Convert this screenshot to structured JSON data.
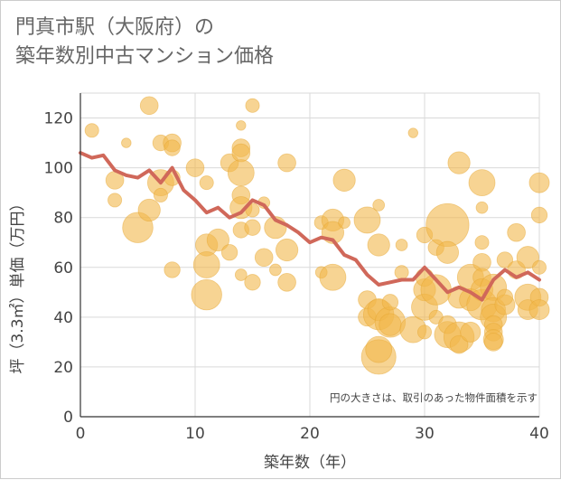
{
  "chart_data": {
    "type": "scatter",
    "title": "門真市駅（大阪府）の\n築年数別中古マンション価格",
    "xlabel": "築年数（年）",
    "ylabel": "坪（3.3㎡）単価（万円）",
    "xlim": [
      0,
      40
    ],
    "ylim": [
      0,
      130
    ],
    "x_ticks": [
      "0",
      "10",
      "20",
      "30",
      "40"
    ],
    "y_ticks": [
      "0",
      "20",
      "40",
      "60",
      "80",
      "100",
      "120"
    ],
    "grid": true,
    "note": "円の大きさは、取引のあった物件面積を示す",
    "colors": {
      "bubble": "#f2b84b",
      "bubble_stroke": "#e6a630",
      "line": "#d0685a",
      "grid": "#d9d9d9",
      "axis": "#333333"
    },
    "series": [
      {
        "type": "line",
        "x": [
          0,
          1,
          2,
          3,
          4,
          5,
          6,
          7,
          8,
          9,
          10,
          11,
          12,
          13,
          14,
          15,
          16,
          17,
          18,
          19,
          20,
          21,
          22,
          23,
          24,
          25,
          26,
          27,
          28,
          29,
          30,
          31,
          32,
          33,
          34,
          35,
          36,
          37,
          38,
          39,
          40
        ],
        "y": [
          106,
          104,
          105,
          99,
          97,
          96,
          99,
          94,
          100,
          91,
          87,
          82,
          84,
          80,
          82,
          87,
          85,
          79,
          77,
          74,
          70,
          72,
          71,
          65,
          63,
          57,
          53,
          54,
          55,
          55,
          60,
          55,
          50,
          52,
          50,
          47,
          55,
          59,
          56,
          58,
          55
        ]
      },
      {
        "type": "bubble",
        "points": [
          [
            1,
            115,
            2
          ],
          [
            4,
            110,
            1
          ],
          [
            3,
            95,
            3
          ],
          [
            3,
            87,
            2
          ],
          [
            5,
            76,
            6
          ],
          [
            6,
            125,
            3
          ],
          [
            6,
            83,
            4
          ],
          [
            7,
            94,
            5
          ],
          [
            7,
            110,
            2.5
          ],
          [
            8,
            110,
            3
          ],
          [
            8,
            108,
            2.5
          ],
          [
            8,
            96,
            2.5
          ],
          [
            7,
            89,
            2
          ],
          [
            8,
            59,
            2.5
          ],
          [
            10,
            100,
            3
          ],
          [
            11,
            94,
            2
          ],
          [
            11,
            69,
            4
          ],
          [
            11,
            61,
            5
          ],
          [
            11,
            49,
            6
          ],
          [
            12,
            71,
            4
          ],
          [
            13,
            102,
            3
          ],
          [
            13,
            66,
            2.5
          ],
          [
            14,
            117,
            1
          ],
          [
            14,
            108,
            3
          ],
          [
            14,
            106,
            3
          ],
          [
            14,
            98,
            5
          ],
          [
            14,
            89,
            3
          ],
          [
            14,
            84,
            4
          ],
          [
            14,
            75,
            2.5
          ],
          [
            14,
            57,
            1.5
          ],
          [
            15,
            125,
            2
          ],
          [
            15,
            83,
            2
          ],
          [
            15,
            76,
            2.5
          ],
          [
            15,
            54,
            2.5
          ],
          [
            16,
            86,
            1.5
          ],
          [
            16,
            64,
            3
          ],
          [
            17,
            76,
            4
          ],
          [
            17,
            59,
            1.5
          ],
          [
            18,
            102,
            3
          ],
          [
            18,
            67,
            4
          ],
          [
            18,
            54,
            3
          ],
          [
            21,
            58,
            1.5
          ],
          [
            21,
            78,
            2
          ],
          [
            22,
            79,
            4
          ],
          [
            22,
            74,
            4
          ],
          [
            22,
            56,
            5
          ],
          [
            23,
            95,
            4
          ],
          [
            23,
            78,
            1.5
          ],
          [
            25,
            79,
            5
          ],
          [
            25,
            47,
            3
          ],
          [
            25,
            40,
            3
          ],
          [
            26,
            85,
            1.5
          ],
          [
            26,
            69,
            4
          ],
          [
            26,
            41,
            6
          ],
          [
            26,
            24,
            7
          ],
          [
            26,
            27,
            5
          ],
          [
            26,
            43,
            4
          ],
          [
            27,
            38,
            6
          ],
          [
            27,
            46,
            2.5
          ],
          [
            27,
            37,
            4
          ],
          [
            28,
            58,
            2
          ],
          [
            28,
            69,
            1.5
          ],
          [
            29,
            114,
            1
          ],
          [
            29,
            35,
            5
          ],
          [
            30,
            73,
            2.5
          ],
          [
            30,
            51,
            4
          ],
          [
            30,
            44,
            5
          ],
          [
            30,
            34,
            2
          ],
          [
            30,
            56,
            3
          ],
          [
            31,
            68,
            2.5
          ],
          [
            31,
            51,
            6
          ],
          [
            31,
            40,
            2
          ],
          [
            32,
            77,
            9
          ],
          [
            32,
            66,
            4
          ],
          [
            32,
            33,
            5
          ],
          [
            32,
            37,
            3
          ],
          [
            33,
            102,
            4
          ],
          [
            33,
            48,
            4
          ],
          [
            33,
            32,
            6
          ],
          [
            33,
            29,
            3
          ],
          [
            34,
            56,
            5
          ],
          [
            34,
            47,
            4
          ],
          [
            34,
            34,
            3.5
          ],
          [
            35,
            94,
            5
          ],
          [
            35,
            84,
            1.5
          ],
          [
            35,
            70,
            2
          ],
          [
            35,
            62,
            3
          ],
          [
            35,
            56,
            3
          ],
          [
            35,
            51,
            4
          ],
          [
            35,
            45,
            6
          ],
          [
            36,
            52,
            5
          ],
          [
            36,
            43,
            4.5
          ],
          [
            36,
            40,
            5
          ],
          [
            36,
            37,
            3
          ],
          [
            36,
            34,
            3
          ],
          [
            36,
            31,
            3.5
          ],
          [
            36,
            30,
            3
          ],
          [
            37,
            63,
            2.5
          ],
          [
            37,
            45,
            3.5
          ],
          [
            37,
            48,
            2.5
          ],
          [
            38,
            74,
            3
          ],
          [
            38,
            59,
            3
          ],
          [
            39,
            64,
            4
          ],
          [
            39,
            48,
            5
          ],
          [
            39,
            43,
            3.5
          ],
          [
            40,
            94,
            3.5
          ],
          [
            40,
            81,
            2.5
          ],
          [
            40,
            48,
            3
          ],
          [
            40,
            43,
            3.5
          ],
          [
            40,
            60,
            2
          ]
        ]
      }
    ]
  }
}
